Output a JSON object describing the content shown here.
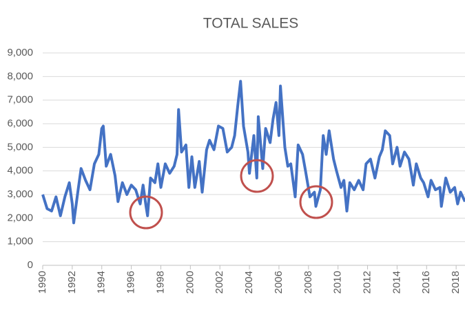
{
  "chart_data": {
    "type": "line",
    "title": "TOTAL SALES",
    "color": "#4472c4",
    "grid": true,
    "x": [
      1990.0,
      1990.3,
      1990.6,
      1990.9,
      1991.2,
      1991.5,
      1991.8,
      1992.0,
      1992.1,
      1992.4,
      1992.6,
      1992.9,
      1993.2,
      1993.5,
      1993.8,
      1994.0,
      1994.1,
      1994.3,
      1994.6,
      1994.9,
      1995.1,
      1995.4,
      1995.7,
      1996.0,
      1996.3,
      1996.6,
      1996.8,
      1997.0,
      1997.1,
      1997.3,
      1997.6,
      1997.8,
      1998.0,
      1998.3,
      1998.6,
      1998.9,
      1999.1,
      1999.2,
      1999.4,
      1999.7,
      1999.9,
      2000.1,
      2000.3,
      2000.6,
      2000.8,
      2001.1,
      2001.3,
      2001.6,
      2001.9,
      2002.2,
      2002.5,
      2002.8,
      2003.0,
      2003.2,
      2003.4,
      2003.6,
      2003.9,
      2004.0,
      2004.3,
      2004.5,
      2004.6,
      2004.9,
      2005.1,
      2005.4,
      2005.6,
      2005.8,
      2006.0,
      2006.1,
      2006.4,
      2006.6,
      2006.8,
      2007.1,
      2007.3,
      2007.6,
      2007.8,
      2008.1,
      2008.4,
      2008.5,
      2008.8,
      2009.0,
      2009.2,
      2009.4,
      2009.7,
      2009.9,
      2010.2,
      2010.4,
      2010.6,
      2010.8,
      2011.1,
      2011.4,
      2011.7,
      2011.9,
      2012.2,
      2012.5,
      2012.8,
      2013.0,
      2013.2,
      2013.5,
      2013.7,
      2014.0,
      2014.2,
      2014.5,
      2014.8,
      2015.1,
      2015.3,
      2015.6,
      2015.8,
      2016.1,
      2016.3,
      2016.6,
      2016.9,
      2017.0,
      2017.3,
      2017.6,
      2017.9,
      2018.1,
      2018.3,
      2018.6
    ],
    "values": [
      3000,
      2400,
      2300,
      2900,
      2100,
      2900,
      3500,
      2600,
      1800,
      3200,
      4100,
      3600,
      3200,
      4300,
      4700,
      5800,
      5900,
      4200,
      4700,
      3800,
      2700,
      3500,
      3000,
      3400,
      3200,
      2600,
      3400,
      2500,
      2100,
      3700,
      3500,
      4300,
      3300,
      4300,
      3900,
      4200,
      4700,
      6600,
      4800,
      5100,
      3300,
      4600,
      3300,
      4400,
      3100,
      4900,
      5300,
      4900,
      5900,
      5800,
      4800,
      5000,
      5500,
      6700,
      7800,
      5900,
      4800,
      3900,
      5500,
      3700,
      6300,
      4100,
      5800,
      5200,
      6200,
      6900,
      5500,
      7600,
      5000,
      4200,
      4300,
      2900,
      5100,
      4700,
      4000,
      2900,
      3100,
      2500,
      3200,
      5500,
      4700,
      5700,
      4500,
      4000,
      3300,
      3600,
      2300,
      3500,
      3200,
      3600,
      3200,
      4300,
      4500,
      3700,
      4600,
      4900,
      5700,
      5500,
      4300,
      5000,
      4200,
      4800,
      4500,
      3400,
      4300,
      3700,
      3500,
      2900,
      3600,
      3200,
      3300,
      2500,
      3700,
      3100,
      3300,
      2600,
      3100,
      2700
    ],
    "xlim": [
      1990,
      2018.6
    ],
    "xticks": [
      1990,
      1992,
      1994,
      1996,
      1998,
      2000,
      2002,
      2004,
      2006,
      2008,
      2010,
      2012,
      2014,
      2016,
      2018
    ],
    "ylim": [
      0,
      9000
    ],
    "yticks": [
      0,
      {
        "value": 1000,
        "label": "1,000"
      },
      {
        "value": 2000,
        "label": "2,000"
      },
      {
        "value": 3000,
        "label": "3,000"
      },
      {
        "value": 4000,
        "label": "4,000"
      },
      {
        "value": 5000,
        "label": "5,000"
      },
      {
        "value": 6000,
        "label": "6,000"
      },
      {
        "value": 7000,
        "label": "7,000"
      },
      {
        "value": 8000,
        "label": "8,000"
      },
      {
        "value": 9000,
        "label": "9,000"
      }
    ]
  }
}
